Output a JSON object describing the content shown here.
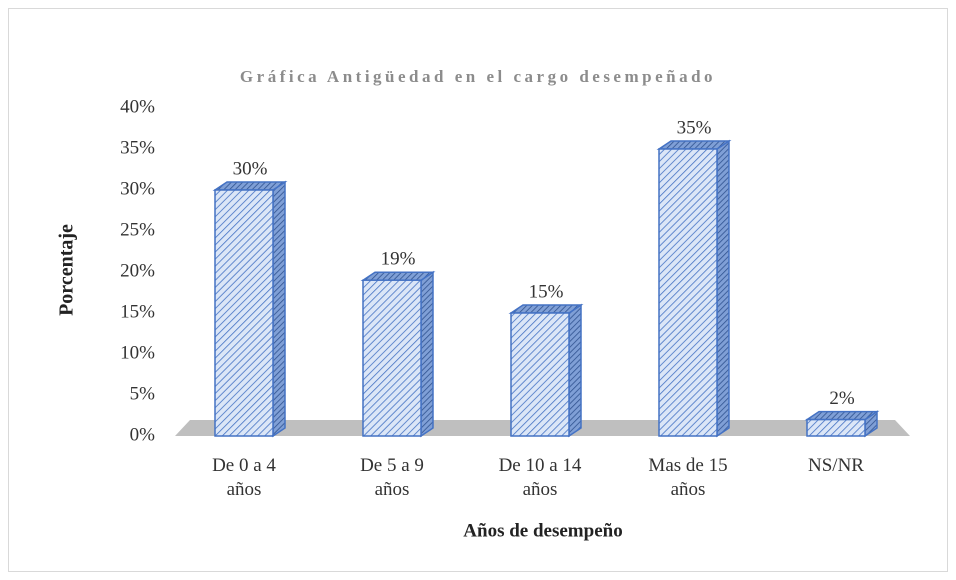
{
  "chart_data": {
    "type": "bar3d",
    "title": "Gráfica Antigüedad en el cargo desempeñado",
    "x_label": "Años de desempeño",
    "y_label": "Porcentaje",
    "categories": [
      "De 0 a 4 años",
      "De 5 a 9 años",
      "De 10 a 14 años",
      "Mas de 15 años",
      "NS/NR"
    ],
    "values": [
      30,
      19,
      15,
      35,
      2
    ],
    "value_labels": [
      "30%",
      "19%",
      "15%",
      "35%",
      "2%"
    ],
    "color": "#4472c4",
    "ylim": [
      0,
      40
    ],
    "yticks": [
      {
        "value": 0,
        "label": "0%"
      },
      {
        "value": 5,
        "label": "5%"
      },
      {
        "value": 10,
        "label": "10%"
      },
      {
        "value": 15,
        "label": "15%"
      },
      {
        "value": 20,
        "label": "20%"
      },
      {
        "value": 25,
        "label": "25%"
      },
      {
        "value": 30,
        "label": "30%"
      },
      {
        "value": 35,
        "label": "35%"
      },
      {
        "value": 40,
        "label": "40%"
      }
    ],
    "grid": false
  }
}
